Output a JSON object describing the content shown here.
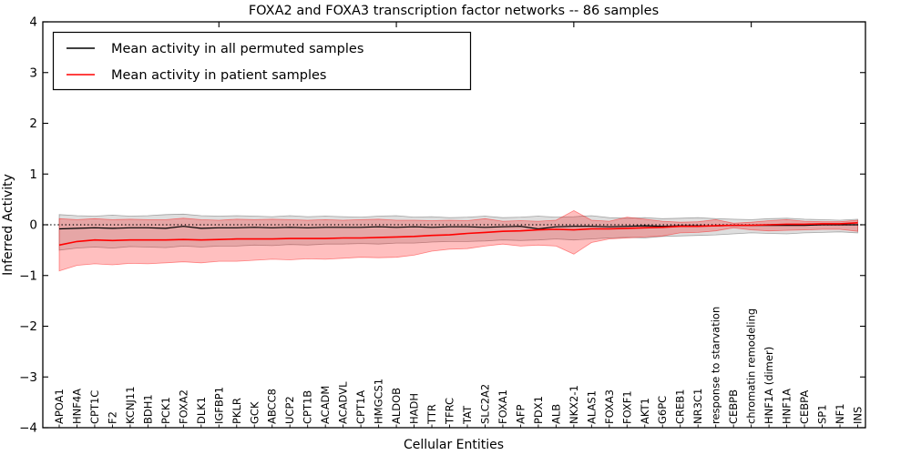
{
  "title": "FOXA2 and FOXA3 transcription factor networks -- 86 samples",
  "axes": {
    "x_label": "Cellular Entities",
    "y_label": "Inferred Activity",
    "y_tick_labels": [
      "4",
      "3",
      "2",
      "1",
      "0",
      "−1",
      "−2",
      "−3",
      "−4"
    ],
    "y_tick_values": [
      4,
      3,
      2,
      1,
      0,
      -1,
      -2,
      -3,
      -4
    ]
  },
  "legend": {
    "items": [
      {
        "label": "Mean activity in all permuted samples",
        "color": "#000000"
      },
      {
        "label": "Mean activity in patient samples",
        "color": "#ff0000"
      }
    ]
  },
  "colors": {
    "permuted_line": "#000000",
    "patient_line": "#ff0000",
    "permuted_band": "#000000",
    "patient_band": "#ff0000",
    "frame": "#000000",
    "background": "#ffffff"
  },
  "chart_data": {
    "type": "line",
    "title": "FOXA2 and FOXA3 transcription factor networks -- 86 samples",
    "xlabel": "Cellular Entities",
    "ylabel": "Inferred Activity",
    "ylim": [
      -4,
      4
    ],
    "grid": false,
    "legend_position": "upper left",
    "reference_line": {
      "y": 0,
      "style": "dotted",
      "color": "#000000"
    },
    "x_top_tick_indices": [
      9,
      19,
      29,
      39
    ],
    "categories": [
      "APOA1",
      "HNF4A",
      "CPT1C",
      "F2",
      "KCNJ11",
      "BDH1",
      "PCK1",
      "FOXA2",
      "DLK1",
      "IGFBP1",
      "PKLR",
      "GCK",
      "ABCC8",
      "UCP2",
      "CPT1B",
      "ACADM",
      "ACADVL",
      "CPT1A",
      "HMGCS1",
      "ALDOB",
      "HADH",
      "TTR",
      "TFRC",
      "TAT",
      "SLC2A2",
      "FOXA1",
      "AFP",
      "PDX1",
      "ALB",
      "NKX2-1",
      "ALAS1",
      "FOXA3",
      "FOXF1",
      "AKT1",
      "G6PC",
      "CREB1",
      "NR3C1",
      "response to starvation",
      "CEBPB",
      "chromatin remodeling",
      "HNF1A (dimer)",
      "HNF1A",
      "CEBPA",
      "SP1",
      "NF1",
      "INS"
    ],
    "series": [
      {
        "name": "Mean activity in all permuted samples",
        "color": "#000000",
        "line_width": 1.2,
        "band_opacity": 0.13,
        "values": [
          -0.08,
          -0.07,
          -0.06,
          -0.07,
          -0.06,
          -0.06,
          -0.07,
          -0.03,
          -0.07,
          -0.06,
          -0.06,
          -0.05,
          -0.06,
          -0.05,
          -0.06,
          -0.05,
          -0.05,
          -0.05,
          -0.04,
          -0.05,
          -0.04,
          -0.05,
          -0.04,
          -0.04,
          -0.05,
          -0.04,
          -0.03,
          -0.08,
          -0.04,
          -0.03,
          -0.03,
          -0.04,
          -0.03,
          -0.02,
          -0.03,
          -0.02,
          -0.02,
          -0.02,
          -0.01,
          -0.01,
          -0.01,
          -0.01,
          -0.01,
          0.0,
          0.0,
          0.0
        ],
        "band_upper": [
          0.2,
          0.18,
          0.17,
          0.19,
          0.17,
          0.18,
          0.2,
          0.21,
          0.18,
          0.17,
          0.18,
          0.17,
          0.16,
          0.18,
          0.16,
          0.17,
          0.16,
          0.15,
          0.17,
          0.18,
          0.15,
          0.16,
          0.14,
          0.15,
          0.17,
          0.14,
          0.15,
          0.17,
          0.15,
          0.16,
          0.18,
          0.14,
          0.13,
          0.14,
          0.12,
          0.13,
          0.14,
          0.12,
          0.11,
          0.1,
          0.12,
          0.13,
          0.11,
          0.1,
          0.09,
          0.11
        ],
        "band_lower": [
          -0.5,
          -0.46,
          -0.44,
          -0.46,
          -0.43,
          -0.44,
          -0.45,
          -0.42,
          -0.44,
          -0.42,
          -0.42,
          -0.4,
          -0.41,
          -0.39,
          -0.4,
          -0.38,
          -0.38,
          -0.37,
          -0.38,
          -0.36,
          -0.36,
          -0.34,
          -0.33,
          -0.33,
          -0.32,
          -0.3,
          -0.31,
          -0.3,
          -0.28,
          -0.3,
          -0.28,
          -0.26,
          -0.25,
          -0.26,
          -0.23,
          -0.22,
          -0.21,
          -0.2,
          -0.18,
          -0.16,
          -0.17,
          -0.18,
          -0.16,
          -0.15,
          -0.14,
          -0.16
        ]
      },
      {
        "name": "Mean activity in patient samples",
        "color": "#ff0000",
        "line_width": 1.6,
        "band_opacity": 0.25,
        "values": [
          -0.4,
          -0.33,
          -0.3,
          -0.31,
          -0.3,
          -0.3,
          -0.3,
          -0.29,
          -0.3,
          -0.29,
          -0.28,
          -0.28,
          -0.28,
          -0.27,
          -0.27,
          -0.27,
          -0.26,
          -0.26,
          -0.25,
          -0.24,
          -0.23,
          -0.21,
          -0.2,
          -0.17,
          -0.15,
          -0.13,
          -0.12,
          -0.1,
          -0.09,
          -0.1,
          -0.08,
          -0.08,
          -0.07,
          -0.06,
          -0.05,
          -0.03,
          -0.03,
          -0.02,
          -0.01,
          -0.01,
          0.0,
          0.01,
          0.01,
          0.02,
          0.02,
          0.04
        ],
        "band_upper": [
          0.12,
          0.1,
          0.12,
          0.1,
          0.11,
          0.1,
          0.1,
          0.13,
          0.1,
          0.09,
          0.11,
          0.1,
          0.11,
          0.1,
          0.09,
          0.1,
          0.09,
          0.1,
          0.11,
          0.09,
          0.09,
          0.08,
          0.09,
          0.08,
          0.12,
          0.07,
          0.08,
          0.07,
          0.09,
          0.28,
          0.09,
          0.07,
          0.15,
          0.11,
          0.07,
          0.05,
          0.06,
          0.1,
          0.03,
          0.05,
          0.08,
          0.1,
          0.07,
          0.06,
          0.06,
          0.09
        ],
        "band_lower": [
          -0.91,
          -0.8,
          -0.77,
          -0.79,
          -0.76,
          -0.77,
          -0.75,
          -0.73,
          -0.75,
          -0.72,
          -0.72,
          -0.7,
          -0.68,
          -0.69,
          -0.67,
          -0.68,
          -0.66,
          -0.64,
          -0.65,
          -0.64,
          -0.6,
          -0.52,
          -0.48,
          -0.47,
          -0.42,
          -0.38,
          -0.42,
          -0.4,
          -0.42,
          -0.58,
          -0.35,
          -0.28,
          -0.26,
          -0.24,
          -0.22,
          -0.16,
          -0.15,
          -0.12,
          -0.06,
          -0.1,
          -0.12,
          -0.11,
          -0.1,
          -0.09,
          -0.09,
          -0.13
        ]
      }
    ]
  }
}
